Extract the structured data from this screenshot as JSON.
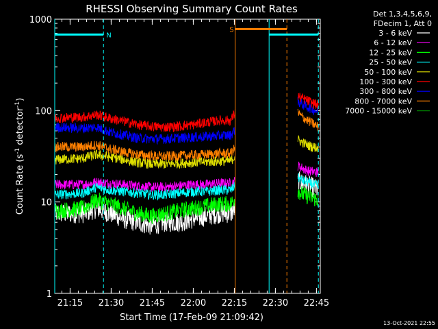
{
  "chart_data": {
    "type": "line",
    "title": "RHESSI Observing Summary Count Rates",
    "xlabel": "Start Time (17-Feb-09 21:09:42)",
    "ylabel_main": "Count Rate (s",
    "ylabel_sup1": "-1",
    "ylabel_mid": " detector",
    "ylabel_sup2": "-1",
    "ylabel_end": ")",
    "footer": "13-Oct-2021 22:55",
    "x_range_min": [
      9.7,
      100
    ],
    "y_log": true,
    "ylim": [
      1,
      1000
    ],
    "x_ticks": [
      {
        "m": 15.3,
        "label": "21:15"
      },
      {
        "m": 30.3,
        "label": "21:30"
      },
      {
        "m": 45.3,
        "label": "21:45"
      },
      {
        "m": 60.3,
        "label": "22:00"
      },
      {
        "m": 75.3,
        "label": "22:15"
      },
      {
        "m": 90.3,
        "label": "22:30"
      },
      {
        "m": 105.3,
        "label": "22:45"
      }
    ],
    "y_ticks": [
      {
        "v": 1,
        "label": "1"
      },
      {
        "v": 10,
        "label": "10"
      },
      {
        "v": 100,
        "label": "100"
      },
      {
        "v": 1000,
        "label": "1000"
      }
    ],
    "legend_header": [
      "Det 1,3,4,5,6,9,",
      "FDecim 1, Att 0"
    ],
    "series": [
      {
        "name": "3 - 6 keV",
        "color": "#ffffff",
        "style": "noisy",
        "segments": [
          {
            "x": [
              9.7,
              20,
              25,
              30,
              35,
              40,
              45,
              50,
              55,
              60,
              65,
              70,
              74,
              75.6
            ],
            "y": [
              7.5,
              7.5,
              8.5,
              7.5,
              6.5,
              6,
              5.5,
              6,
              6,
              6.5,
              7,
              7.5,
              7.5,
              8.5
            ]
          },
          {
            "x": [
              98.5,
              99.5,
              102,
              104,
              106
            ],
            "y": [
              17,
              16.5,
              15.5,
              14.5,
              13.5
            ]
          }
        ]
      },
      {
        "name": "6 - 12 keV",
        "color": "#ff00ff",
        "style": "noisy",
        "segments": [
          {
            "x": [
              9.7,
              20,
              25,
              30,
              35,
              40,
              45,
              50,
              55,
              60,
              65,
              70,
              74,
              75.6
            ],
            "y": [
              15.5,
              15.5,
              16.5,
              16,
              15.5,
              15,
              14.5,
              14.5,
              15,
              15.5,
              15.5,
              16,
              16,
              17
            ]
          },
          {
            "x": [
              98.5,
              99.5,
              102,
              104,
              106
            ],
            "y": [
              25,
              24,
              22,
              21.5,
              21
            ]
          }
        ]
      },
      {
        "name": "12 - 25 keV",
        "color": "#00ff00",
        "style": "noisy",
        "segments": [
          {
            "x": [
              9.7,
              20,
              25,
              30,
              35,
              40,
              45,
              50,
              55,
              60,
              65,
              70,
              74,
              75.6
            ],
            "y": [
              8,
              8.5,
              10.5,
              9.5,
              8.5,
              7.5,
              7,
              7.5,
              8,
              8.5,
              9,
              9.5,
              9.5,
              11
            ]
          },
          {
            "x": [
              98.5,
              99.5,
              102,
              104,
              106
            ],
            "y": [
              13.5,
              12.5,
              11.5,
              11,
              10.5
            ]
          }
        ]
      },
      {
        "name": "25 - 50 keV",
        "color": "#00ffff",
        "style": "noisy",
        "segments": [
          {
            "x": [
              9.7,
              20,
              25,
              30,
              35,
              40,
              45,
              50,
              55,
              60,
              65,
              70,
              74,
              75.6
            ],
            "y": [
              12,
              12.5,
              14.5,
              13.5,
              13,
              12.5,
              12,
              12,
              12.5,
              13,
              13,
              13.5,
              13.5,
              15
            ]
          },
          {
            "x": [
              98.5,
              99.5,
              102,
              104,
              106
            ],
            "y": [
              18.5,
              17.5,
              16.5,
              15.5,
              15
            ]
          }
        ]
      },
      {
        "name": "50 - 100 keV",
        "color": "#e0e000",
        "style": "noisy",
        "segments": [
          {
            "x": [
              9.7,
              20,
              25,
              30,
              35,
              40,
              45,
              50,
              55,
              60,
              65,
              70,
              74,
              75.6
            ],
            "y": [
              29,
              30,
              33,
              31,
              29,
              27,
              26,
              26,
              26.5,
              27,
              27.5,
              28,
              28,
              32
            ]
          },
          {
            "x": [
              98.5,
              99.5,
              102,
              104,
              106
            ],
            "y": [
              48,
              46,
              42,
              40,
              39
            ]
          }
        ]
      },
      {
        "name": "100 - 300 keV",
        "color": "#ff0000",
        "style": "noisy",
        "segments": [
          {
            "x": [
              9.7,
              20,
              25,
              30,
              35,
              40,
              45,
              50,
              55,
              60,
              65,
              70,
              74,
              75.6
            ],
            "y": [
              83,
              85,
              90,
              82,
              76,
              70,
              67,
              66,
              67,
              70,
              74,
              78,
              78,
              95
            ]
          },
          {
            "x": [
              98.5,
              99.5,
              102,
              104,
              106
            ],
            "y": [
              145,
              138,
              128,
              120,
              115
            ]
          }
        ]
      },
      {
        "name": "300 - 800 keV",
        "color": "#0000ff",
        "style": "noisy",
        "segments": [
          {
            "x": [
              9.7,
              20,
              25,
              30,
              35,
              40,
              45,
              50,
              55,
              60,
              65,
              70,
              74,
              75.6
            ],
            "y": [
              66,
              64,
              66,
              58,
              54,
              50,
              49,
              49,
              50,
              51,
              52,
              53,
              54,
              62
            ]
          },
          {
            "x": [
              98.5,
              99.5,
              102,
              104,
              106
            ],
            "y": [
              125,
              120,
              110,
              103,
              97
            ]
          }
        ]
      },
      {
        "name": "800 - 7000 keV",
        "color": "#ff8000",
        "style": "noisy",
        "segments": [
          {
            "x": [
              9.7,
              20,
              25,
              30,
              35,
              40,
              45,
              50,
              55,
              60,
              65,
              70,
              74,
              75.6
            ],
            "y": [
              40,
              40,
              42,
              38,
              35,
              33,
              32,
              31.5,
              32,
              32.5,
              33,
              34,
              34,
              39
            ]
          },
          {
            "x": [
              98.5,
              99.5,
              102,
              104,
              106
            ],
            "y": [
              95,
              88,
              78,
              72,
              66
            ]
          }
        ]
      },
      {
        "name": "7000 - 15000 keV",
        "color": "#008000",
        "style": "smooth",
        "segments": []
      }
    ],
    "markers": [
      {
        "label": "N",
        "color": "#00ffff",
        "y": 680,
        "x_start": 9.7,
        "x_end": 27.5
      },
      {
        "label": "",
        "color": "#00ffff",
        "y": 680,
        "x_start": 88,
        "x_end": 106
      },
      {
        "label": "S",
        "color": "#ff8000",
        "y": 780,
        "x_start": 75.6,
        "x_end": 94.5
      }
    ],
    "vlines": [
      {
        "m": 9.7,
        "color": "#00ffff",
        "dash": false
      },
      {
        "m": 27.5,
        "color": "#00ffff",
        "dash": true
      },
      {
        "m": 75.6,
        "color": "#ff8000",
        "dash": false
      },
      {
        "m": 88,
        "color": "#00ffff",
        "dash": false
      },
      {
        "m": 94.5,
        "color": "#ff8000",
        "dash": true
      },
      {
        "m": 106,
        "color": "#00ffff",
        "dash": true
      }
    ],
    "grid": false,
    "legend_position": "top-right"
  }
}
